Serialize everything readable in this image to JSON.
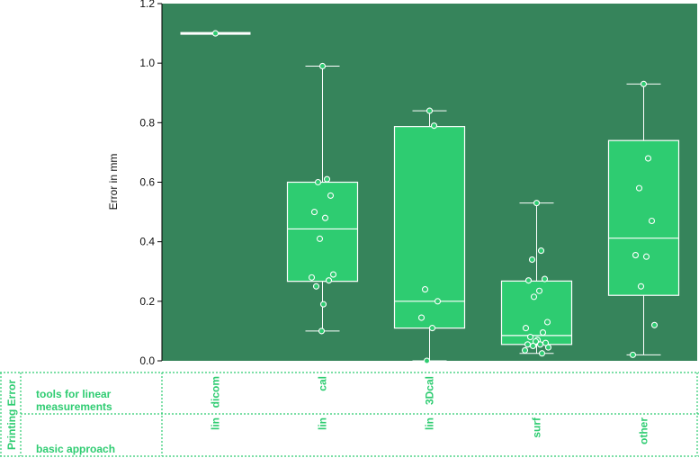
{
  "chart_data": {
    "type": "box",
    "ylabel": "Error in mm",
    "ylim": [
      0,
      1.2
    ],
    "yticks": [
      "0.0",
      "0.2",
      "0.4",
      "0.6",
      "0.8",
      "1.0",
      "1.2"
    ],
    "colors": {
      "plot_bg": "#36845b",
      "box_fill": "#2ecc71",
      "lines": "#ffffff",
      "points": "#2ecc71",
      "table_text": "#2ecc71",
      "table_border": "#2ecc71"
    },
    "groups": [
      {
        "tool": "dicom",
        "approach": "lin",
        "q1": 1.1,
        "median": 1.1,
        "q3": 1.1,
        "whisker_low": 1.1,
        "whisker_high": 1.1,
        "points": [
          1.1
        ]
      },
      {
        "tool": "cal",
        "approach": "lin",
        "q1": 0.267,
        "median": 0.443,
        "q3": 0.6,
        "whisker_low": 0.1,
        "whisker_high": 0.99,
        "points": [
          0.99,
          0.61,
          0.6,
          0.555,
          0.5,
          0.48,
          0.41,
          0.29,
          0.28,
          0.27,
          0.25,
          0.19,
          0.1
        ]
      },
      {
        "tool": "3Dcal",
        "approach": "lin",
        "q1": 0.11,
        "median": 0.2,
        "q3": 0.787,
        "whisker_low": 0.0,
        "whisker_high": 0.84,
        "points": [
          0.84,
          0.79,
          0.24,
          0.2,
          0.145,
          0.11,
          0.0
        ]
      },
      {
        "tool": "",
        "approach": "surf",
        "q1": 0.055,
        "median": 0.085,
        "q3": 0.268,
        "whisker_low": 0.025,
        "whisker_high": 0.53,
        "points": [
          0.53,
          0.37,
          0.34,
          0.275,
          0.27,
          0.235,
          0.215,
          0.13,
          0.11,
          0.095,
          0.08,
          0.07,
          0.065,
          0.06,
          0.055,
          0.055,
          0.05,
          0.045,
          0.035,
          0.025
        ]
      },
      {
        "tool": "",
        "approach": "other",
        "q1": 0.22,
        "median": 0.412,
        "q3": 0.74,
        "whisker_low": 0.02,
        "whisker_high": 0.93,
        "points": [
          0.93,
          0.68,
          0.58,
          0.47,
          0.355,
          0.35,
          0.25,
          0.12,
          0.02
        ]
      }
    ]
  },
  "table": {
    "title": "Printing Error",
    "row1_label_line1": "tools for linear",
    "row1_label_line2": "measurements",
    "row2_label": "basic approach"
  }
}
